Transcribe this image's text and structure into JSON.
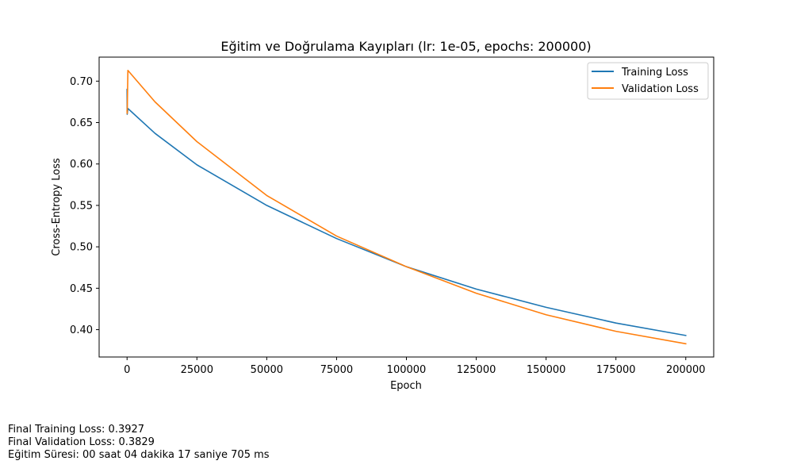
{
  "chart_data": {
    "type": "line",
    "title": "Eğitim ve Doğrulama Kayıpları (lr: 1e-05, epochs: 200000)",
    "xlabel": "Epoch",
    "ylabel": "Cross-Entropy Loss",
    "xlim": [
      -10000,
      210000
    ],
    "ylim": [
      0.367,
      0.729
    ],
    "x_ticks": [
      0,
      25000,
      50000,
      75000,
      100000,
      125000,
      150000,
      175000,
      200000
    ],
    "x_tick_labels": [
      "0",
      "25000",
      "50000",
      "75000",
      "100000",
      "125000",
      "150000",
      "175000",
      "200000"
    ],
    "y_ticks": [
      0.4,
      0.45,
      0.5,
      0.55,
      0.6,
      0.65,
      0.7
    ],
    "y_tick_labels": [
      "0.40",
      "0.45",
      "0.50",
      "0.55",
      "0.60",
      "0.65",
      "0.70"
    ],
    "grid": false,
    "legend_position": "top-right",
    "series": [
      {
        "name": "Training Loss",
        "color": "#1f77b4",
        "points": [
          [
            0,
            0.69
          ],
          [
            50,
            0.66
          ],
          [
            300,
            0.667
          ],
          [
            10000,
            0.637
          ],
          [
            25000,
            0.599
          ],
          [
            50000,
            0.55
          ],
          [
            75000,
            0.51
          ],
          [
            100000,
            0.476
          ],
          [
            125000,
            0.449
          ],
          [
            150000,
            0.427
          ],
          [
            175000,
            0.408
          ],
          [
            200000,
            0.393
          ]
        ]
      },
      {
        "name": "Validation Loss",
        "color": "#ff7f0e",
        "points": [
          [
            0,
            0.664
          ],
          [
            50,
            0.661
          ],
          [
            300,
            0.713
          ],
          [
            10000,
            0.675
          ],
          [
            25000,
            0.627
          ],
          [
            50000,
            0.562
          ],
          [
            75000,
            0.513
          ],
          [
            100000,
            0.476
          ],
          [
            125000,
            0.444
          ],
          [
            150000,
            0.418
          ],
          [
            175000,
            0.398
          ],
          [
            200000,
            0.383
          ]
        ]
      }
    ]
  },
  "footer": {
    "line1": "Final Training Loss: 0.3927",
    "line2": "Final Validation Loss: 0.3829",
    "line3": "Eğitim Süresi: 00 saat 04 dakika 17 saniye 705 ms"
  }
}
